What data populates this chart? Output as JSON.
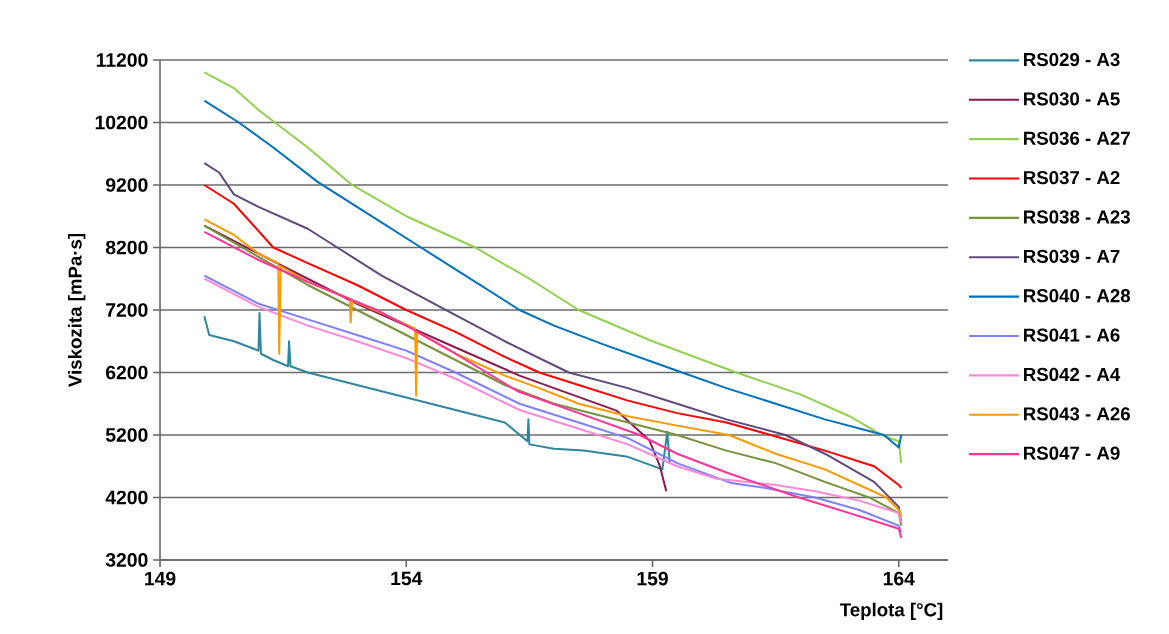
{
  "chart_data": {
    "type": "line",
    "xlabel": "Teplota [°C]",
    "ylabel": "Viskozita [mPa·s]",
    "xlim": [
      149,
      165
    ],
    "ylim": [
      3200,
      11200
    ],
    "xticks": [
      149,
      154,
      159,
      164
    ],
    "yticks": [
      3200,
      4200,
      5200,
      6200,
      7200,
      8200,
      9200,
      10200,
      11200
    ],
    "grid": "y",
    "legend": "right",
    "series": [
      {
        "name": "RS029 - A3",
        "color": "#31859c",
        "x": [
          149.9,
          150,
          150.5,
          151,
          151.02,
          151.05,
          151.3,
          151.6,
          151.62,
          151.65,
          152,
          153,
          154,
          155,
          156,
          156.46,
          156.48,
          156.5,
          157,
          157.6,
          158.5,
          159.2,
          159.3,
          159.35
        ],
        "values": [
          7100,
          6800,
          6700,
          6550,
          7150,
          6500,
          6400,
          6300,
          6700,
          6300,
          6200,
          6000,
          5800,
          5600,
          5400,
          5100,
          5450,
          5050,
          4980,
          4950,
          4850,
          4650,
          5250,
          4750
        ]
      },
      {
        "name": "RS030 - A5",
        "color": "#8b1a4f",
        "x": [
          149.9,
          151,
          152,
          153,
          154,
          155,
          156.3,
          157,
          158.27,
          158.94,
          159.15,
          159.28
        ],
        "values": [
          8550,
          8100,
          7700,
          7300,
          6950,
          6600,
          6150,
          5950,
          5590,
          5110,
          4700,
          4300
        ]
      },
      {
        "name": "RS036 - A27",
        "color": "#92d050",
        "x": [
          149.9,
          150.5,
          151,
          151.5,
          152,
          152.9,
          154,
          155.4,
          156.5,
          157.5,
          159,
          160.7,
          162,
          163,
          163.65,
          164,
          164.05
        ],
        "values": [
          11000,
          10750,
          10400,
          10100,
          9800,
          9200,
          8700,
          8200,
          7700,
          7200,
          6700,
          6200,
          5850,
          5500,
          5200,
          5100,
          4750
        ]
      },
      {
        "name": "RS037 - A2",
        "color": "#ff0000",
        "x": [
          149.9,
          150.5,
          151.3,
          152,
          153,
          154,
          155,
          156,
          156.7,
          157.5,
          158.5,
          159.5,
          160.5,
          161.4,
          162.5,
          163.5,
          164,
          164.05
        ],
        "values": [
          9200,
          8900,
          8200,
          7950,
          7600,
          7200,
          6850,
          6450,
          6200,
          6000,
          5750,
          5550,
          5400,
          5200,
          4950,
          4700,
          4400,
          4350
        ]
      },
      {
        "name": "RS038 - A23",
        "color": "#77933c",
        "x": [
          149.9,
          151,
          152,
          153,
          154,
          155,
          156,
          157,
          158,
          159.5,
          160.5,
          161.5,
          162.5,
          163.4,
          164,
          164.05
        ],
        "values": [
          8550,
          8050,
          7600,
          7200,
          6800,
          6400,
          6000,
          5700,
          5500,
          5200,
          4950,
          4750,
          4450,
          4200,
          3950,
          3750
        ]
      },
      {
        "name": "RS039 - A7",
        "color": "#604a7b",
        "x": [
          149.9,
          150.2,
          150.5,
          151,
          152,
          152.6,
          153.5,
          154.8,
          156,
          157.3,
          158.5,
          159.5,
          160.5,
          161.7,
          162.5,
          163.5,
          164,
          164.05
        ],
        "values": [
          9550,
          9400,
          9050,
          8850,
          8500,
          8200,
          7750,
          7200,
          6700,
          6200,
          5950,
          5700,
          5450,
          5200,
          4900,
          4450,
          4050,
          3800
        ]
      },
      {
        "name": "RS040 - A28",
        "color": "#0070c0",
        "x": [
          149.9,
          150.6,
          151.3,
          152.2,
          153,
          154.3,
          155,
          156.3,
          157,
          158,
          159.6,
          160.5,
          161.5,
          162.5,
          163.7,
          164,
          164.05
        ],
        "values": [
          10550,
          10200,
          9800,
          9250,
          8850,
          8200,
          7850,
          7200,
          6950,
          6650,
          6200,
          5950,
          5700,
          5450,
          5200,
          5000,
          5200
        ]
      },
      {
        "name": "RS041 - A6",
        "color": "#7f7fff",
        "x": [
          149.9,
          151,
          152,
          153,
          154,
          155,
          156.3,
          157.5,
          158.5,
          159.5,
          160.6,
          161.3,
          162.3,
          163.2,
          164,
          164.05
        ],
        "values": [
          7750,
          7300,
          7050,
          6800,
          6550,
          6200,
          5700,
          5400,
          5150,
          4750,
          4430,
          4350,
          4200,
          4000,
          3750,
          3650
        ]
      },
      {
        "name": "RS042 - A4",
        "color": "#ff88d5",
        "x": [
          149.9,
          151,
          152,
          153,
          154,
          155,
          156.3,
          157.5,
          158.5,
          159.5,
          160.3,
          161.5,
          162.3,
          163.2,
          164,
          164.05
        ],
        "values": [
          7700,
          7250,
          6950,
          6700,
          6430,
          6100,
          5600,
          5300,
          5050,
          4700,
          4500,
          4400,
          4300,
          4150,
          3950,
          3800
        ]
      },
      {
        "name": "RS043 - A26",
        "color": "#ff9900",
        "x": [
          149.9,
          150.5,
          151,
          151.4,
          151.42,
          151.45,
          152,
          152.85,
          152.87,
          152.9,
          153.5,
          154.18,
          154.2,
          154.22,
          155,
          156,
          156.7,
          157.5,
          158.5,
          159.5,
          160.55,
          161.5,
          162.5,
          163.75,
          164,
          164.05
        ],
        "values": [
          8650,
          8400,
          8100,
          7950,
          6500,
          7900,
          7650,
          7380,
          7000,
          7350,
          7150,
          6900,
          5830,
          6850,
          6500,
          6150,
          5950,
          5700,
          5500,
          5350,
          5200,
          4900,
          4650,
          4200,
          4000,
          3900
        ]
      },
      {
        "name": "RS047 - A9",
        "color": "#ff3399",
        "x": [
          149.9,
          151,
          152,
          153.4,
          154,
          155,
          156.26,
          157.5,
          158.74,
          159.5,
          160.5,
          161.97,
          163,
          164,
          164.05
        ],
        "values": [
          8450,
          8000,
          7650,
          7200,
          6950,
          6500,
          5900,
          5550,
          5200,
          4900,
          4600,
          4200,
          3950,
          3700,
          3550
        ]
      }
    ]
  }
}
